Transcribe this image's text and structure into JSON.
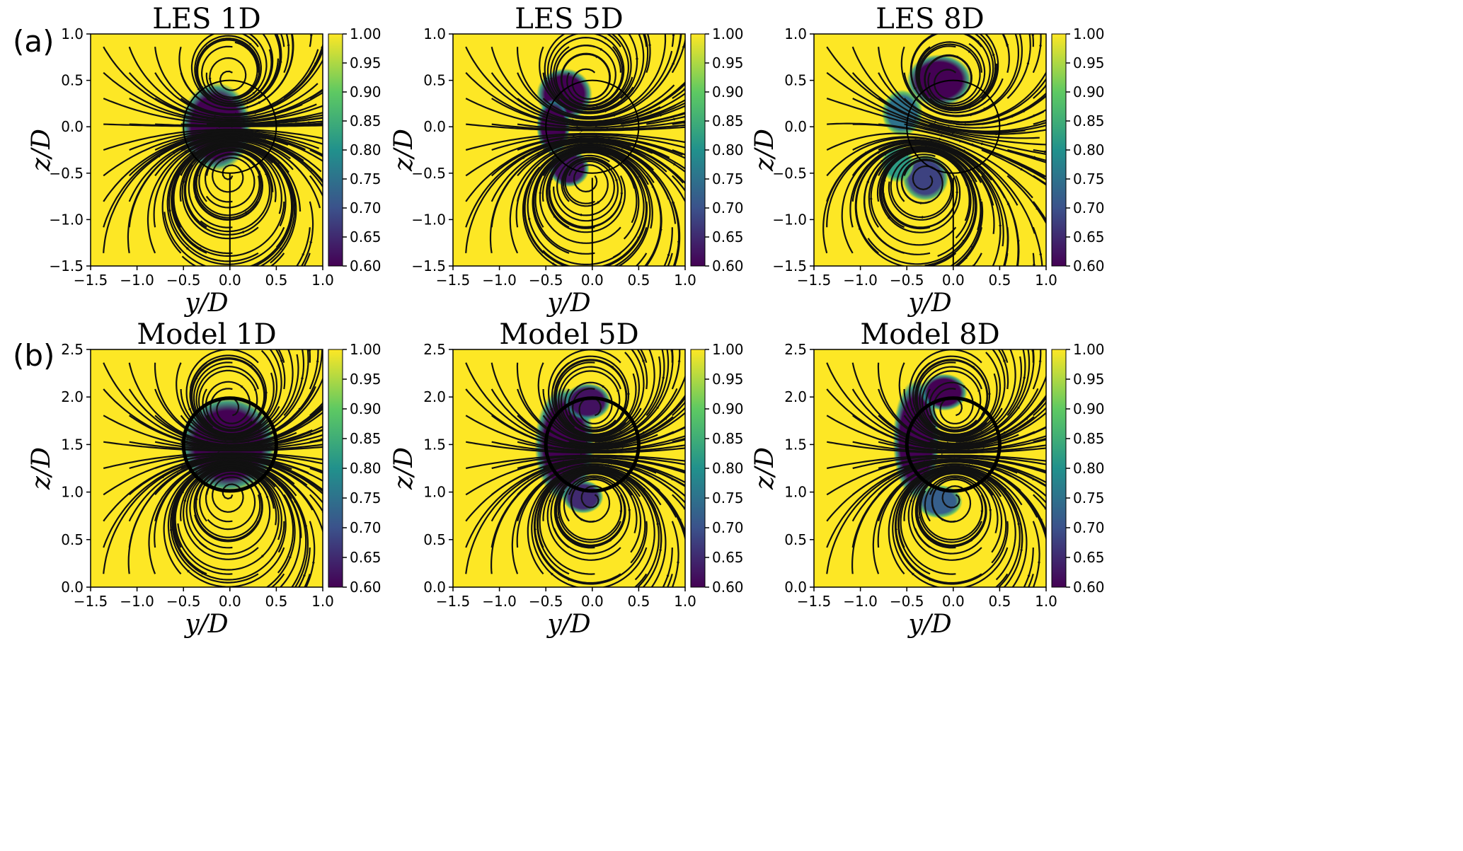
{
  "figure": {
    "row_labels": [
      "(a)",
      "(b)"
    ]
  },
  "colors": {
    "background": "#fde725",
    "streamline": "#111111",
    "circle": "#000000",
    "colormap": [
      "#440154",
      "#3b528b",
      "#21918c",
      "#5ec962",
      "#fde725"
    ]
  },
  "chart_data": [
    {
      "type": "heatmap",
      "title": "LES 1D",
      "xlabel": "y/D",
      "ylabel": "z/D",
      "xlim": [
        -1.5,
        1.0
      ],
      "ylim": [
        -1.5,
        1.0
      ],
      "xticks": [
        "−1.5",
        "−1.0",
        "−0.5",
        "0.0",
        "0.5",
        "1.0"
      ],
      "yticks": [
        "−1.5",
        "−1.0",
        "−0.5",
        "0.0",
        "0.5",
        "1.0"
      ],
      "colorbar": {
        "min": 0.6,
        "max": 1.0,
        "ticks": [
          "0.60",
          "0.65",
          "0.70",
          "0.75",
          "0.80",
          "0.85",
          "0.90",
          "0.95",
          "1.00"
        ]
      },
      "rotor": {
        "center": [
          0.0,
          0.0
        ],
        "radius": 0.5,
        "line": "thin"
      },
      "deficits": [
        {
          "cx": -0.15,
          "cy": 0.0,
          "rx": 0.38,
          "ry": 0.48,
          "min": 0.6
        }
      ],
      "vortices": [
        {
          "x": 0.0,
          "y": 0.5,
          "s": 1
        },
        {
          "x": 0.0,
          "y": -0.5,
          "s": -1
        }
      ],
      "tower": {
        "x": 0.0,
        "y_top": -0.5,
        "y_bottom": -1.5
      }
    },
    {
      "type": "heatmap",
      "title": "LES 5D",
      "xlabel": "y/D",
      "ylabel": "z/D",
      "xlim": [
        -1.5,
        1.0
      ],
      "ylim": [
        -1.5,
        1.0
      ],
      "xticks": [
        "−1.5",
        "−1.0",
        "−0.5",
        "0.0",
        "0.5",
        "1.0"
      ],
      "yticks": [
        "−1.5",
        "−1.0",
        "−0.5",
        "0.0",
        "0.5",
        "1.0"
      ],
      "colorbar": {
        "min": 0.6,
        "max": 1.0,
        "ticks": [
          "0.60",
          "0.65",
          "0.70",
          "0.75",
          "0.80",
          "0.85",
          "0.90",
          "0.95",
          "1.00"
        ]
      },
      "rotor": {
        "center": [
          0.0,
          0.0
        ],
        "radius": 0.5,
        "line": "thin"
      },
      "deficits": [
        {
          "cx": -0.3,
          "cy": 0.35,
          "rx": 0.3,
          "ry": 0.28,
          "min": 0.6
        },
        {
          "cx": -0.42,
          "cy": 0.0,
          "rx": 0.18,
          "ry": 0.3,
          "min": 0.6
        },
        {
          "cx": -0.25,
          "cy": -0.45,
          "rx": 0.22,
          "ry": 0.2,
          "min": 0.62
        }
      ],
      "vortices": [
        {
          "x": -0.05,
          "y": 0.45,
          "s": 1
        },
        {
          "x": -0.05,
          "y": -0.55,
          "s": -1
        }
      ],
      "tower": {
        "x": 0.0,
        "y_top": -0.55,
        "y_bottom": -1.5
      }
    },
    {
      "type": "heatmap",
      "title": "LES 8D",
      "xlabel": "y/D",
      "ylabel": "z/D",
      "xlim": [
        -1.5,
        1.0
      ],
      "ylim": [
        -1.5,
        1.0
      ],
      "xticks": [
        "−1.5",
        "−1.0",
        "−0.5",
        "0.0",
        "0.5",
        "1.0"
      ],
      "yticks": [
        "−1.5",
        "−1.0",
        "−0.5",
        "0.0",
        "0.5",
        "1.0"
      ],
      "colorbar": {
        "min": 0.6,
        "max": 1.0,
        "ticks": [
          "0.60",
          "0.65",
          "0.70",
          "0.75",
          "0.80",
          "0.85",
          "0.90",
          "0.95",
          "1.00"
        ]
      },
      "rotor": {
        "center": [
          0.0,
          0.0
        ],
        "radius": 0.5,
        "line": "thin"
      },
      "deficits": [
        {
          "cx": -0.15,
          "cy": 0.5,
          "rx": 0.35,
          "ry": 0.28,
          "min": 0.6
        },
        {
          "cx": -0.55,
          "cy": 0.15,
          "rx": 0.22,
          "ry": 0.25,
          "min": 0.75
        },
        {
          "cx": -0.3,
          "cy": -0.55,
          "rx": 0.25,
          "ry": 0.25,
          "min": 0.68
        },
        {
          "cx": -0.6,
          "cy": -0.4,
          "rx": 0.18,
          "ry": 0.2,
          "min": 0.82
        }
      ],
      "vortices": [
        {
          "x": -0.05,
          "y": 0.45,
          "s": 1
        },
        {
          "x": -0.3,
          "y": -0.55,
          "s": -1
        }
      ],
      "tower": {
        "x": 0.0,
        "y_top": -0.55,
        "y_bottom": -1.5
      }
    },
    {
      "type": "heatmap",
      "title": "Model 1D",
      "xlabel": "y/D",
      "ylabel": "z/D",
      "xlim": [
        -1.5,
        1.0
      ],
      "ylim": [
        0.0,
        2.5
      ],
      "xticks": [
        "−1.5",
        "−1.0",
        "−0.5",
        "0.0",
        "0.5",
        "1.0"
      ],
      "yticks": [
        "0.0",
        "0.5",
        "1.0",
        "1.5",
        "2.0",
        "2.5"
      ],
      "colorbar": {
        "min": 0.6,
        "max": 1.0,
        "ticks": [
          "0.60",
          "0.65",
          "0.70",
          "0.75",
          "0.80",
          "0.85",
          "0.90",
          "0.95",
          "1.00"
        ]
      },
      "rotor": {
        "center": [
          0.0,
          1.5
        ],
        "radius": 0.5,
        "line": "thick"
      },
      "deficits": [
        {
          "cx": -0.02,
          "cy": 1.5,
          "rx": 0.52,
          "ry": 0.52,
          "min": 0.6
        }
      ],
      "vortices": [
        {
          "x": 0.0,
          "y": 1.85,
          "s": 1
        },
        {
          "x": 0.0,
          "y": 1.0,
          "s": -1
        }
      ]
    },
    {
      "type": "heatmap",
      "title": "Model 5D",
      "xlabel": "y/D",
      "ylabel": "z/D",
      "xlim": [
        -1.5,
        1.0
      ],
      "ylim": [
        0.0,
        2.5
      ],
      "xticks": [
        "−1.5",
        "−1.0",
        "−0.5",
        "0.0",
        "0.5",
        "1.0"
      ],
      "yticks": [
        "0.0",
        "0.5",
        "1.0",
        "1.5",
        "2.0",
        "2.5"
      ],
      "colorbar": {
        "min": 0.6,
        "max": 1.0,
        "ticks": [
          "0.60",
          "0.65",
          "0.70",
          "0.75",
          "0.80",
          "0.85",
          "0.90",
          "0.95",
          "1.00"
        ]
      },
      "rotor": {
        "center": [
          0.0,
          1.5
        ],
        "radius": 0.5,
        "line": "thick"
      },
      "deficits": [
        {
          "cx": -0.3,
          "cy": 1.5,
          "rx": 0.32,
          "ry": 0.62,
          "min": 0.6
        },
        {
          "cx": -0.05,
          "cy": 1.95,
          "rx": 0.25,
          "ry": 0.2,
          "min": 0.62
        },
        {
          "cx": -0.1,
          "cy": 0.95,
          "rx": 0.22,
          "ry": 0.18,
          "min": 0.65
        }
      ],
      "vortices": [
        {
          "x": 0.0,
          "y": 1.85,
          "s": 1
        },
        {
          "x": 0.0,
          "y": 0.95,
          "s": -1
        }
      ]
    },
    {
      "type": "heatmap",
      "title": "Model 8D",
      "xlabel": "y/D",
      "ylabel": "z/D",
      "xlim": [
        -1.5,
        1.0
      ],
      "ylim": [
        0.0,
        2.5
      ],
      "xticks": [
        "−1.5",
        "−1.0",
        "−0.5",
        "0.0",
        "0.5",
        "1.0"
      ],
      "yticks": [
        "0.0",
        "0.5",
        "1.0",
        "1.5",
        "2.0",
        "2.5"
      ],
      "colorbar": {
        "min": 0.6,
        "max": 1.0,
        "ticks": [
          "0.60",
          "0.65",
          "0.70",
          "0.75",
          "0.80",
          "0.85",
          "0.90",
          "0.95",
          "1.00"
        ]
      },
      "rotor": {
        "center": [
          0.0,
          1.5
        ],
        "radius": 0.5,
        "line": "thick"
      },
      "deficits": [
        {
          "cx": -0.4,
          "cy": 1.55,
          "rx": 0.25,
          "ry": 0.65,
          "min": 0.6
        },
        {
          "cx": -0.1,
          "cy": 2.05,
          "rx": 0.25,
          "ry": 0.2,
          "min": 0.6
        },
        {
          "cx": -0.15,
          "cy": 0.9,
          "rx": 0.25,
          "ry": 0.18,
          "min": 0.72
        }
      ],
      "vortices": [
        {
          "x": 0.0,
          "y": 1.85,
          "s": 1
        },
        {
          "x": 0.0,
          "y": 0.95,
          "s": -1
        }
      ]
    }
  ]
}
